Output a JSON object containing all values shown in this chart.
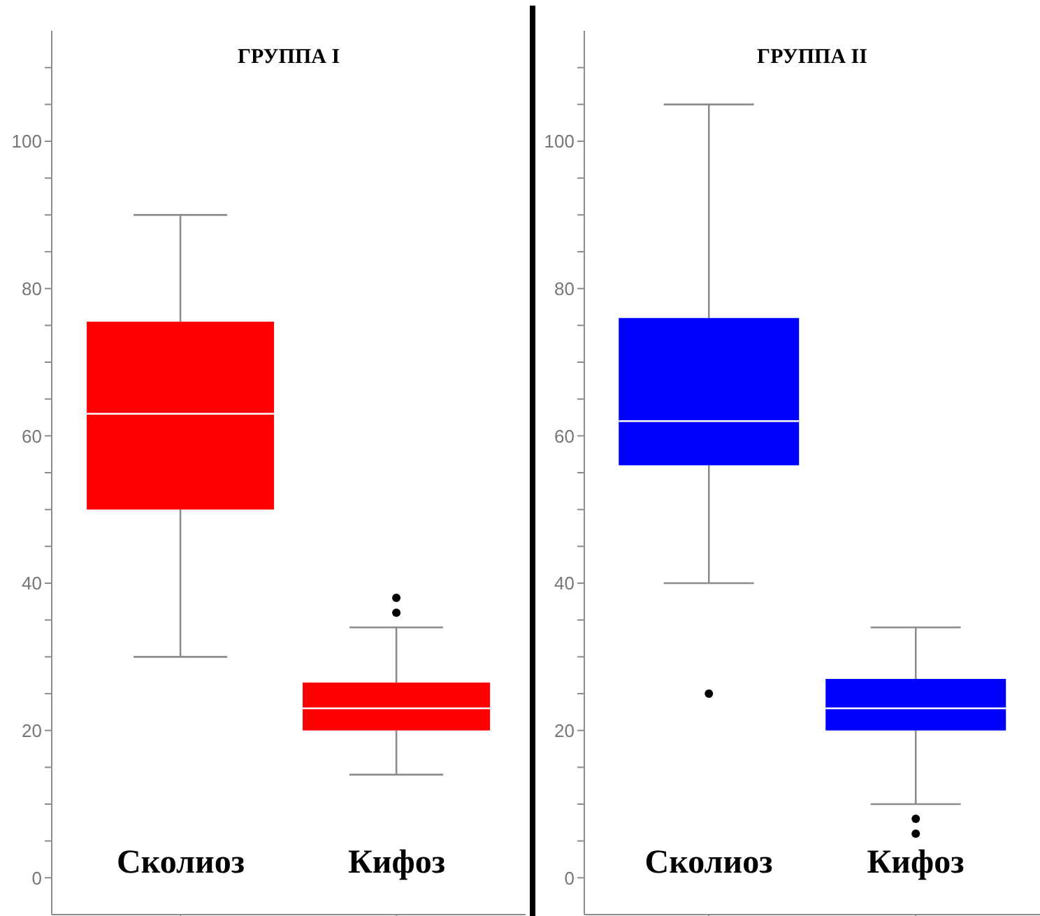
{
  "chart_data": [
    {
      "type": "box",
      "title": "ГРУППА I",
      "categories": [
        "Сколиоз",
        "Кифоз"
      ],
      "series": [
        {
          "color": "#ff0000",
          "boxes": [
            {
              "low": 30,
              "q1": 50,
              "median": 63,
              "q3": 75.5,
              "high": 90
            },
            {
              "low": 14,
              "q1": 20,
              "median": 23,
              "q3": 26.5,
              "high": 34,
              "outliers": [
                36,
                38
              ]
            }
          ]
        }
      ],
      "ylim": [
        -5,
        115
      ],
      "yticks": [
        0,
        {
          "value": 5,
          "label": null
        },
        {
          "value": 10,
          "label": null
        },
        {
          "value": 15,
          "label": null
        },
        20,
        {
          "value": 25,
          "label": null
        },
        {
          "value": 30,
          "label": null
        },
        {
          "value": 35,
          "label": null
        },
        40,
        {
          "value": 45,
          "label": null
        },
        {
          "value": 50,
          "label": null
        },
        {
          "value": 55,
          "label": null
        },
        60,
        {
          "value": 65,
          "label": null
        },
        {
          "value": 70,
          "label": null
        },
        {
          "value": 75,
          "label": null
        },
        80,
        {
          "value": 85,
          "label": null
        },
        {
          "value": 90,
          "label": null
        },
        {
          "value": 95,
          "label": null
        },
        100,
        {
          "value": 105,
          "label": null
        },
        {
          "value": 110,
          "label": null
        }
      ],
      "grid": false,
      "legend": false
    },
    {
      "type": "box",
      "title": "ГРУППА II",
      "categories": [
        "Сколиоз",
        "Кифоз"
      ],
      "series": [
        {
          "color": "#0000ff",
          "boxes": [
            {
              "low": 40,
              "q1": 56,
              "median": 62,
              "q3": 76,
              "high": 105,
              "outliers": [
                25
              ]
            },
            {
              "low": 10,
              "q1": 20,
              "median": 23,
              "q3": 27,
              "high": 34,
              "outliers": [
                6,
                8
              ]
            }
          ]
        }
      ],
      "ylim": [
        -5,
        115
      ],
      "yticks": [
        0,
        {
          "value": 5,
          "label": null
        },
        {
          "value": 10,
          "label": null
        },
        {
          "value": 15,
          "label": null
        },
        20,
        {
          "value": 25,
          "label": null
        },
        {
          "value": 30,
          "label": null
        },
        {
          "value": 35,
          "label": null
        },
        40,
        {
          "value": 45,
          "label": null
        },
        {
          "value": 50,
          "label": null
        },
        {
          "value": 55,
          "label": null
        },
        60,
        {
          "value": 65,
          "label": null
        },
        {
          "value": 70,
          "label": null
        },
        {
          "value": 75,
          "label": null
        },
        80,
        {
          "value": 85,
          "label": null
        },
        {
          "value": 90,
          "label": null
        },
        {
          "value": 95,
          "label": null
        },
        100,
        {
          "value": 105,
          "label": null
        },
        {
          "value": 110,
          "label": null
        }
      ],
      "grid": false,
      "legend": false
    }
  ]
}
